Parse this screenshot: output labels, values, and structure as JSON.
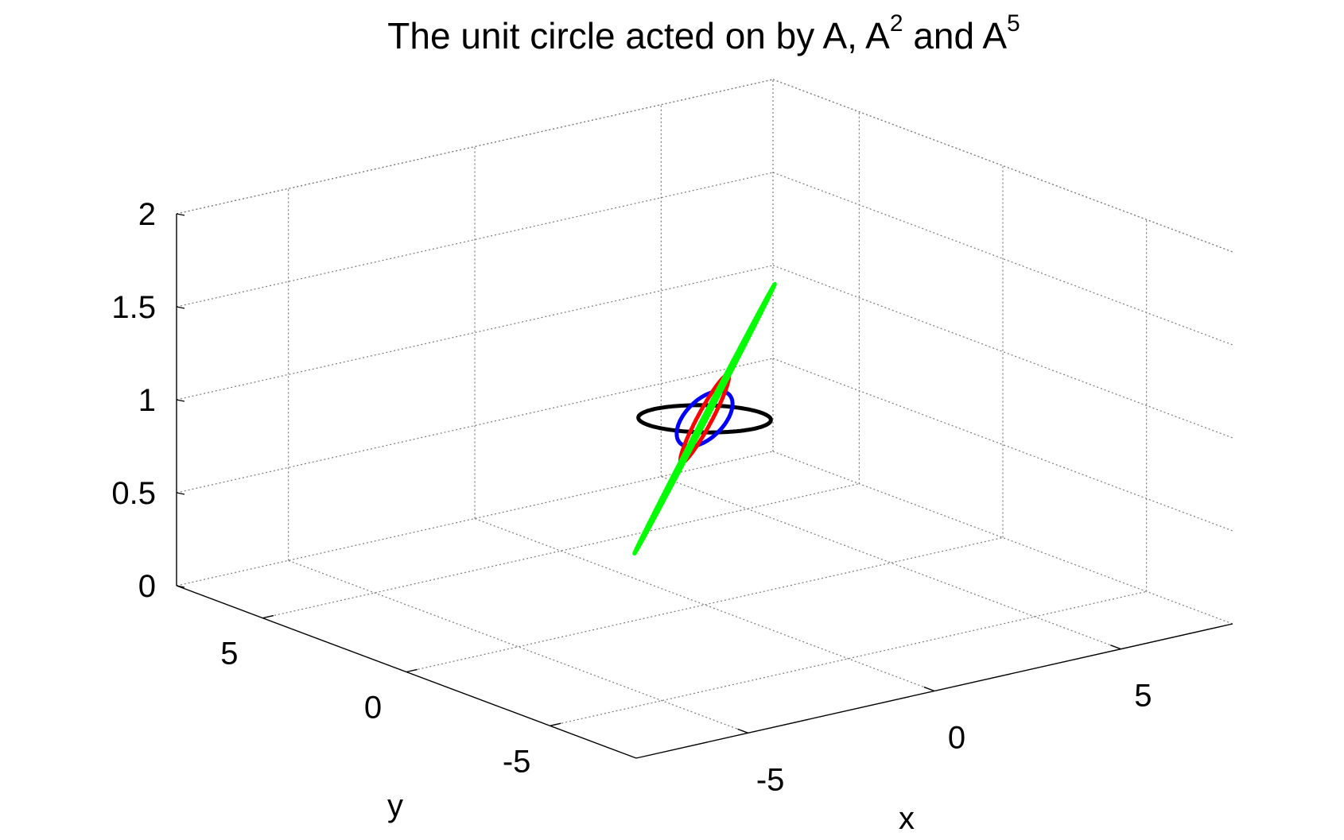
{
  "chart_data": {
    "type": "line3d",
    "title": {
      "prefix": "The unit circle acted on by A, A",
      "sup1": "2",
      "middle": " and A",
      "sup2": "5"
    },
    "xlabel": "x",
    "ylabel": "y",
    "zlabel": "",
    "xlim": [
      -8,
      8
    ],
    "ylim": [
      -8,
      8
    ],
    "zlim": [
      0,
      2
    ],
    "xticks": [
      -5,
      0,
      5
    ],
    "yticks": [
      -5,
      0,
      5
    ],
    "zticks": [
      0,
      0.5,
      1,
      1.5,
      2
    ],
    "xtick_labels": [
      "-5",
      "0",
      "5"
    ],
    "ytick_labels": [
      "-5",
      "0",
      "5"
    ],
    "ztick_labels": [
      "0",
      "0.5",
      "1",
      "1.5",
      "2"
    ],
    "grid": true,
    "z_level": 1,
    "series": [
      {
        "kind": "ellipse",
        "center": [
          0,
          0
        ],
        "major": [
          1.0,
          -1.0
        ],
        "minor": [
          0.7,
          0.7
        ],
        "z": 1,
        "color": "#000000"
      },
      {
        "kind": "ellipse",
        "center": [
          0,
          0
        ],
        "major": [
          1.5,
          1.4
        ],
        "minor": [
          0.35,
          -0.35
        ],
        "z": 1,
        "color": "#0000ff"
      },
      {
        "kind": "ellipse",
        "center": [
          0,
          0
        ],
        "major": [
          2.35,
          2.25
        ],
        "minor": [
          0.12,
          -0.12
        ],
        "z": 1,
        "color": "#ff0000"
      },
      {
        "kind": "ellipse",
        "center": [
          0,
          0
        ],
        "major": [
          7.2,
          6.9
        ],
        "minor": [
          0.03,
          -0.03
        ],
        "z": 1,
        "color": "#00ff00"
      }
    ]
  }
}
